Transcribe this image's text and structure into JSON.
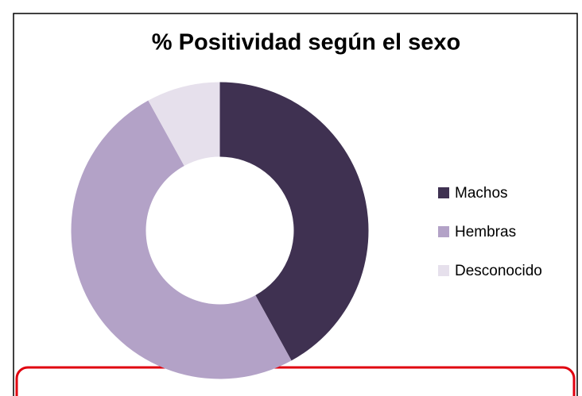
{
  "chart_data": {
    "type": "donut",
    "title": "% Positividad según el sexo",
    "categories": [
      "Machos",
      "Hembras",
      "Desconocido"
    ],
    "values": [
      42,
      50,
      8
    ],
    "colors": [
      "#3f3151",
      "#b3a2c7",
      "#e6e0ec"
    ],
    "legend": "right"
  }
}
